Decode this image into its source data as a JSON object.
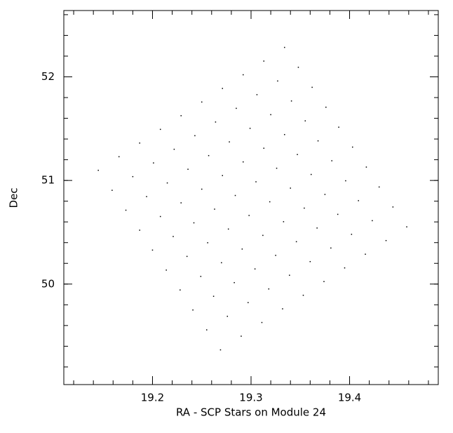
{
  "chart_data": {
    "type": "scatter",
    "xlabel": "RA - SCP Stars on Module 24",
    "ylabel": "Dec",
    "color": "#000000",
    "xlim": [
      19.11,
      19.49
    ],
    "ylim": [
      49.03,
      52.64
    ],
    "xticks": [
      19.2,
      19.3,
      19.4
    ],
    "yticks": [
      50,
      51,
      52
    ],
    "xticks_minor": [
      19.12,
      19.14,
      19.16,
      19.18,
      19.2,
      19.22,
      19.24,
      19.26,
      19.28,
      19.3,
      19.32,
      19.34,
      19.36,
      19.38,
      19.4,
      19.42,
      19.44,
      19.46,
      19.48
    ],
    "yticks_minor": [
      49.2,
      49.4,
      49.6,
      49.8,
      50,
      50.2,
      50.4,
      50.6,
      50.8,
      51,
      51.2,
      51.4,
      51.6,
      51.8,
      52,
      52.2,
      52.4,
      52.6
    ],
    "x": [
      19.145,
      19.159,
      19.173,
      19.187,
      19.2,
      19.214,
      19.228,
      19.241,
      19.255,
      19.269,
      19.166,
      19.18,
      19.194,
      19.208,
      19.221,
      19.235,
      19.249,
      19.262,
      19.276,
      19.29,
      19.187,
      19.201,
      19.215,
      19.229,
      19.242,
      19.256,
      19.27,
      19.283,
      19.297,
      19.311,
      19.208,
      19.222,
      19.236,
      19.25,
      19.263,
      19.277,
      19.291,
      19.304,
      19.318,
      19.332,
      19.229,
      19.243,
      19.257,
      19.271,
      19.284,
      19.298,
      19.312,
      19.325,
      19.339,
      19.353,
      19.25,
      19.264,
      19.278,
      19.292,
      19.305,
      19.319,
      19.333,
      19.346,
      19.36,
      19.374,
      19.271,
      19.285,
      19.299,
      19.313,
      19.326,
      19.34,
      19.354,
      19.367,
      19.381,
      19.395,
      19.292,
      19.306,
      19.32,
      19.334,
      19.347,
      19.361,
      19.375,
      19.388,
      19.402,
      19.416,
      19.313,
      19.327,
      19.341,
      19.355,
      19.368,
      19.382,
      19.396,
      19.409,
      19.423,
      19.437,
      19.334,
      19.348,
      19.362,
      19.376,
      19.389,
      19.403,
      19.417,
      19.43,
      19.444,
      19.458
    ],
    "values": [
      51.098,
      50.905,
      50.713,
      50.52,
      50.328,
      50.135,
      49.943,
      49.75,
      49.558,
      49.365,
      51.229,
      51.037,
      50.844,
      50.652,
      50.459,
      50.267,
      50.074,
      49.882,
      49.689,
      49.497,
      51.361,
      51.169,
      50.976,
      50.784,
      50.591,
      50.399,
      50.206,
      50.014,
      49.821,
      49.629,
      51.493,
      51.301,
      51.108,
      50.916,
      50.723,
      50.531,
      50.338,
      50.146,
      49.953,
      49.761,
      51.625,
      51.432,
      51.24,
      51.047,
      50.855,
      50.662,
      50.47,
      50.277,
      50.085,
      49.892,
      51.757,
      51.564,
      51.372,
      51.179,
      50.987,
      50.794,
      50.602,
      50.409,
      50.217,
      50.024,
      51.888,
      51.696,
      51.503,
      51.311,
      51.118,
      50.926,
      50.733,
      50.541,
      50.348,
      50.156,
      52.02,
      51.828,
      51.635,
      51.443,
      51.25,
      51.058,
      50.865,
      50.673,
      50.48,
      50.288,
      52.152,
      51.96,
      51.767,
      51.575,
      51.382,
      51.19,
      50.997,
      50.805,
      50.612,
      50.42,
      52.284,
      52.092,
      51.899,
      51.707,
      51.514,
      51.322,
      51.129,
      50.937,
      50.744,
      50.552
    ]
  }
}
